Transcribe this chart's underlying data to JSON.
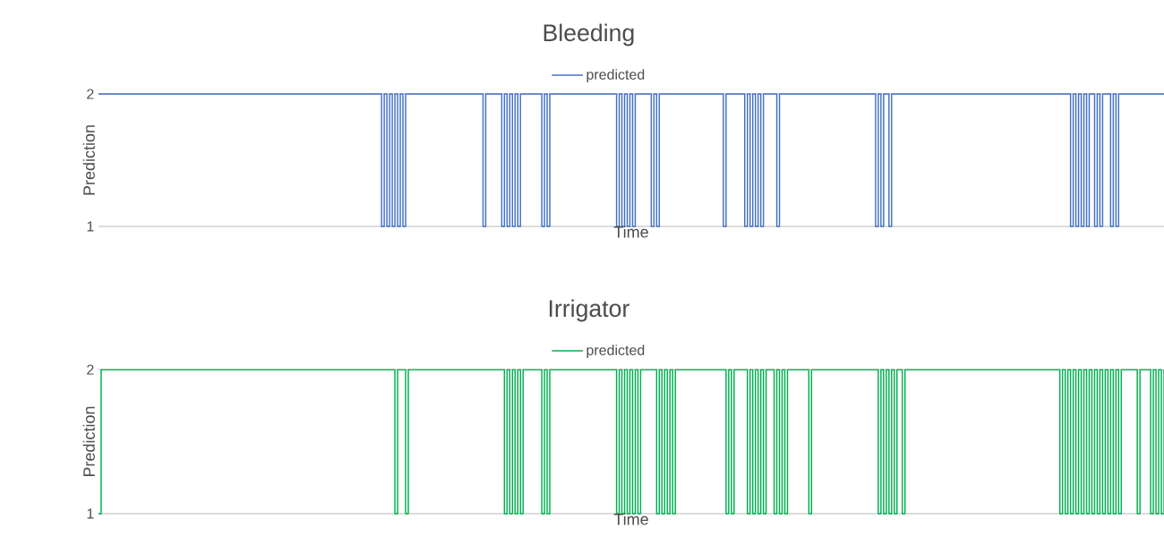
{
  "chart_data": [
    {
      "type": "step",
      "title": "Bleeding",
      "xlabel": "Time",
      "ylabel": "Prediction",
      "ylim": [
        1,
        2
      ],
      "yticks": [
        1,
        2
      ],
      "grid": "y",
      "legend": "top",
      "tick_labels": "y",
      "categories": [
        null,
        null,
        null,
        null,
        null,
        null,
        null,
        null,
        null,
        null,
        null,
        null,
        null,
        null,
        null,
        null,
        null,
        null,
        null,
        null,
        null,
        null,
        null,
        null,
        null,
        null,
        null,
        null,
        null,
        null,
        null,
        null,
        null,
        null,
        null,
        null,
        null,
        null,
        null,
        null,
        null,
        null,
        null,
        null,
        null,
        null,
        null,
        null,
        null,
        null,
        null,
        null,
        null,
        null,
        null,
        null,
        null,
        null,
        null,
        null,
        null,
        null,
        null,
        null,
        null,
        null,
        null,
        null,
        null,
        null,
        null,
        null,
        null,
        null,
        null,
        null,
        null,
        null,
        null,
        null,
        null,
        null,
        null,
        null,
        null,
        null,
        null,
        null,
        null,
        null,
        null,
        null,
        null,
        null,
        null,
        null,
        null,
        null,
        null,
        null,
        null,
        null,
        null,
        null,
        null,
        null,
        null,
        null,
        null,
        null,
        null,
        null,
        null,
        null,
        null,
        null,
        null,
        null,
        null,
        null,
        null,
        null,
        null,
        null,
        null,
        null,
        null,
        null,
        null,
        null,
        null,
        null,
        null,
        null,
        null,
        null,
        null,
        null,
        null,
        null,
        null,
        null,
        null,
        null,
        null,
        null,
        null,
        null,
        null,
        null,
        null,
        null,
        null,
        null,
        null,
        null,
        null,
        null,
        null,
        null,
        null,
        null,
        null,
        null,
        null,
        null,
        null,
        null,
        null,
        null,
        null,
        null,
        null,
        null,
        null,
        null,
        null,
        null,
        null,
        null,
        null,
        null,
        null,
        null,
        null,
        null,
        null,
        null,
        null,
        null,
        null,
        null,
        null,
        null,
        null,
        null,
        null,
        null,
        null,
        null,
        null,
        null,
        null,
        null,
        null,
        null,
        null,
        null,
        null,
        null,
        null,
        null,
        null,
        null,
        null,
        null,
        null,
        null,
        null,
        null,
        null,
        null,
        null,
        null,
        null,
        null,
        null,
        null,
        null,
        null,
        null,
        null,
        null,
        null,
        null,
        null,
        null,
        null,
        null,
        null,
        null,
        null,
        null,
        null,
        null,
        null,
        null,
        null,
        null,
        null,
        null,
        null,
        null,
        null,
        null,
        null,
        null,
        null,
        null,
        null,
        null,
        null,
        null,
        null,
        null,
        null,
        null,
        null,
        null,
        null,
        null,
        null,
        null,
        null,
        null,
        null,
        null,
        null,
        null,
        null,
        null,
        null,
        null,
        null,
        null,
        null,
        null,
        null,
        null,
        null,
        null,
        null,
        null,
        null,
        null,
        null,
        null,
        null,
        null,
        null,
        null,
        null,
        null,
        null,
        null,
        null,
        null,
        null,
        null,
        null,
        null,
        null,
        null,
        null,
        null,
        null,
        null,
        null,
        null,
        null,
        null,
        null,
        null,
        null,
        null,
        null,
        null,
        null,
        null,
        null,
        null,
        null,
        null,
        null,
        null,
        null,
        null,
        null,
        null,
        null,
        null,
        null,
        null,
        null,
        null,
        null,
        null,
        null,
        null,
        null,
        null,
        null,
        null,
        null,
        null,
        null,
        null,
        null,
        null,
        null,
        null,
        null,
        null,
        null,
        null,
        null,
        null,
        null,
        null,
        null,
        null,
        null,
        null,
        null,
        null,
        null,
        null,
        null,
        null,
        null,
        null,
        null,
        null,
        null,
        null,
        null,
        null,
        null,
        null,
        null,
        null,
        null,
        null,
        null,
        null,
        null,
        null,
        null,
        null,
        null
      ],
      "series": [
        {
          "name": "predicted",
          "color": "#4472c4",
          "values": [
            2,
            2,
            2,
            2,
            2,
            2,
            2,
            2,
            2,
            2,
            2,
            2,
            2,
            2,
            2,
            2,
            2,
            2,
            2,
            2,
            2,
            2,
            2,
            2,
            2,
            2,
            2,
            2,
            2,
            2,
            2,
            2,
            2,
            2,
            2,
            2,
            2,
            2,
            2,
            2,
            2,
            2,
            2,
            2,
            2,
            2,
            2,
            2,
            2,
            2,
            2,
            2,
            2,
            2,
            2,
            2,
            2,
            2,
            2,
            2,
            2,
            2,
            2,
            2,
            2,
            2,
            2,
            2,
            2,
            2,
            2,
            2,
            2,
            2,
            2,
            2,
            2,
            2,
            2,
            2,
            2,
            2,
            2,
            2,
            2,
            2,
            2,
            2,
            2,
            2,
            2,
            2,
            2,
            2,
            2,
            2,
            2,
            2,
            2,
            2,
            2,
            2,
            2,
            2,
            2,
            2,
            1,
            2,
            1,
            2,
            1,
            2,
            1,
            2,
            1,
            2,
            2,
            2,
            2,
            2,
            2,
            2,
            2,
            2,
            2,
            2,
            2,
            2,
            2,
            2,
            2,
            2,
            2,
            2,
            2,
            2,
            2,
            2,
            2,
            2,
            2,
            2,
            2,
            2,
            1,
            2,
            2,
            2,
            2,
            2,
            2,
            1,
            2,
            1,
            2,
            1,
            2,
            1,
            2,
            2,
            2,
            2,
            2,
            2,
            2,
            2,
            1,
            2,
            1,
            2,
            2,
            2,
            2,
            2,
            2,
            2,
            2,
            2,
            2,
            2,
            2,
            2,
            2,
            2,
            2,
            2,
            2,
            2,
            2,
            2,
            2,
            2,
            2,
            2,
            1,
            2,
            1,
            2,
            1,
            2,
            1,
            2,
            2,
            2,
            2,
            2,
            2,
            1,
            2,
            1,
            2,
            2,
            2,
            2,
            2,
            2,
            2,
            2,
            2,
            2,
            2,
            2,
            2,
            2,
            2,
            2,
            2,
            2,
            2,
            2,
            2,
            2,
            2,
            2,
            1,
            2,
            2,
            2,
            2,
            2,
            2,
            2,
            1,
            2,
            1,
            2,
            1,
            2,
            1,
            2,
            2,
            2,
            2,
            2,
            1,
            2,
            2,
            2,
            2,
            2,
            2,
            2,
            2,
            2,
            2,
            2,
            2,
            2,
            2,
            2,
            2,
            2,
            2,
            2,
            2,
            2,
            2,
            2,
            2,
            2,
            2,
            2,
            2,
            2,
            2,
            2,
            2,
            2,
            2,
            2,
            2,
            1,
            2,
            1,
            2,
            2,
            1,
            2,
            2,
            2,
            2,
            2,
            2,
            2,
            2,
            2,
            2,
            2,
            2,
            2,
            2,
            2,
            2,
            2,
            2,
            2,
            2,
            2,
            2,
            2,
            2,
            2,
            2,
            2,
            2,
            2,
            2,
            2,
            2,
            2,
            2,
            2,
            2,
            2,
            2,
            2,
            2,
            2,
            2,
            2,
            2,
            2,
            2,
            2,
            2,
            2,
            2,
            2,
            2,
            2,
            2,
            2,
            2,
            2,
            2,
            2,
            2,
            2,
            2,
            2,
            2,
            2,
            2,
            2,
            1,
            2,
            1,
            2,
            1,
            2,
            1,
            2,
            2,
            1,
            2,
            1,
            2,
            2,
            2,
            1,
            2,
            1,
            2,
            2,
            2,
            2,
            2,
            2,
            2,
            2,
            2,
            2,
            2,
            2,
            2,
            2,
            2,
            2,
            2,
            2
          ]
        }
      ]
    },
    {
      "type": "step",
      "title": "Irrigator",
      "xlabel": "Time",
      "ylabel": "Prediction",
      "ylim": [
        1,
        2
      ],
      "yticks": [
        1,
        2
      ],
      "grid": "y",
      "legend": "top",
      "tick_labels": "y",
      "categories": [
        null,
        null,
        null,
        null,
        null,
        null,
        null,
        null,
        null,
        null,
        null,
        null,
        null,
        null,
        null,
        null,
        null,
        null,
        null,
        null,
        null,
        null,
        null,
        null,
        null,
        null,
        null,
        null,
        null,
        null,
        null,
        null,
        null,
        null,
        null,
        null,
        null,
        null,
        null,
        null,
        null,
        null,
        null,
        null,
        null,
        null,
        null,
        null,
        null,
        null,
        null,
        null,
        null,
        null,
        null,
        null,
        null,
        null,
        null,
        null,
        null,
        null,
        null,
        null,
        null,
        null,
        null,
        null,
        null,
        null,
        null,
        null,
        null,
        null,
        null,
        null,
        null,
        null,
        null,
        null,
        null,
        null,
        null,
        null,
        null,
        null,
        null,
        null,
        null,
        null,
        null,
        null,
        null,
        null,
        null,
        null,
        null,
        null,
        null,
        null,
        null,
        null,
        null,
        null,
        null,
        null,
        null,
        null,
        null,
        null,
        null,
        null,
        null,
        null,
        null,
        null,
        null,
        null,
        null,
        null,
        null,
        null,
        null,
        null,
        null,
        null,
        null,
        null,
        null,
        null,
        null,
        null,
        null,
        null,
        null,
        null,
        null,
        null,
        null,
        null,
        null,
        null,
        null,
        null,
        null,
        null,
        null,
        null,
        null,
        null,
        null,
        null,
        null,
        null,
        null,
        null,
        null,
        null,
        null,
        null,
        null,
        null,
        null,
        null,
        null,
        null,
        null,
        null,
        null,
        null,
        null,
        null,
        null,
        null,
        null,
        null,
        null,
        null,
        null,
        null,
        null,
        null,
        null,
        null,
        null,
        null,
        null,
        null,
        null,
        null,
        null,
        null,
        null,
        null,
        null,
        null,
        null,
        null,
        null,
        null,
        null,
        null,
        null,
        null,
        null,
        null,
        null,
        null,
        null,
        null,
        null,
        null,
        null,
        null,
        null,
        null,
        null,
        null,
        null,
        null,
        null,
        null,
        null,
        null,
        null,
        null,
        null,
        null,
        null,
        null,
        null,
        null,
        null,
        null,
        null,
        null,
        null,
        null,
        null,
        null,
        null,
        null,
        null,
        null,
        null,
        null,
        null,
        null,
        null,
        null,
        null,
        null,
        null,
        null,
        null,
        null,
        null,
        null,
        null,
        null,
        null,
        null,
        null,
        null,
        null,
        null,
        null,
        null,
        null,
        null,
        null,
        null,
        null,
        null,
        null,
        null,
        null,
        null,
        null,
        null,
        null,
        null,
        null,
        null,
        null,
        null,
        null,
        null,
        null,
        null,
        null,
        null,
        null,
        null,
        null,
        null,
        null,
        null,
        null,
        null,
        null,
        null,
        null,
        null,
        null,
        null,
        null,
        null,
        null,
        null,
        null,
        null,
        null,
        null,
        null,
        null,
        null,
        null,
        null,
        null,
        null,
        null,
        null,
        null,
        null,
        null,
        null,
        null,
        null,
        null,
        null,
        null,
        null,
        null,
        null,
        null,
        null,
        null,
        null,
        null,
        null,
        null,
        null,
        null,
        null,
        null,
        null,
        null,
        null,
        null,
        null,
        null,
        null,
        null,
        null,
        null,
        null,
        null,
        null,
        null,
        null,
        null,
        null,
        null,
        null,
        null,
        null,
        null,
        null,
        null,
        null,
        null,
        null,
        null,
        null,
        null,
        null,
        null,
        null,
        null,
        null,
        null,
        null,
        null,
        null,
        null,
        null,
        null,
        null,
        null,
        null,
        null,
        null,
        null,
        null,
        null,
        null,
        null,
        null,
        null
      ],
      "series": [
        {
          "name": "predicted",
          "color": "#00b050",
          "values": [
            1,
            2,
            2,
            2,
            2,
            2,
            2,
            2,
            2,
            2,
            2,
            2,
            2,
            2,
            2,
            2,
            2,
            2,
            2,
            2,
            2,
            2,
            2,
            2,
            2,
            2,
            2,
            2,
            2,
            2,
            2,
            2,
            2,
            2,
            2,
            2,
            2,
            2,
            2,
            2,
            2,
            2,
            2,
            2,
            2,
            2,
            2,
            2,
            2,
            2,
            2,
            2,
            2,
            2,
            2,
            2,
            2,
            2,
            2,
            2,
            2,
            2,
            2,
            2,
            2,
            2,
            2,
            2,
            2,
            2,
            2,
            2,
            2,
            2,
            2,
            2,
            2,
            2,
            2,
            2,
            2,
            2,
            2,
            2,
            2,
            2,
            2,
            2,
            2,
            2,
            2,
            2,
            2,
            2,
            2,
            2,
            2,
            2,
            2,
            2,
            2,
            2,
            2,
            2,
            2,
            2,
            2,
            2,
            2,
            2,
            2,
            1,
            2,
            2,
            2,
            1,
            2,
            2,
            2,
            2,
            2,
            2,
            2,
            2,
            2,
            2,
            2,
            2,
            2,
            2,
            2,
            2,
            2,
            2,
            2,
            2,
            2,
            2,
            2,
            2,
            2,
            2,
            2,
            2,
            2,
            2,
            2,
            2,
            2,
            2,
            2,
            2,
            1,
            2,
            1,
            2,
            1,
            2,
            1,
            2,
            2,
            2,
            2,
            2,
            2,
            2,
            1,
            2,
            1,
            2,
            2,
            2,
            2,
            2,
            2,
            2,
            2,
            2,
            2,
            2,
            2,
            2,
            2,
            2,
            2,
            2,
            2,
            2,
            2,
            2,
            2,
            2,
            2,
            2,
            1,
            2,
            1,
            2,
            1,
            2,
            1,
            2,
            1,
            2,
            2,
            2,
            2,
            2,
            2,
            1,
            2,
            1,
            2,
            1,
            2,
            1,
            2,
            2,
            2,
            2,
            2,
            2,
            2,
            2,
            2,
            2,
            2,
            2,
            2,
            2,
            2,
            2,
            2,
            2,
            2,
            1,
            2,
            1,
            2,
            2,
            2,
            2,
            2,
            1,
            2,
            1,
            2,
            1,
            2,
            1,
            2,
            2,
            2,
            1,
            2,
            1,
            2,
            1,
            2,
            2,
            2,
            2,
            2,
            2,
            2,
            2,
            1,
            2,
            2,
            2,
            2,
            2,
            2,
            2,
            2,
            2,
            2,
            2,
            2,
            2,
            2,
            2,
            2,
            2,
            2,
            2,
            2,
            2,
            2,
            2,
            2,
            2,
            1,
            2,
            1,
            2,
            1,
            2,
            1,
            2,
            2,
            1,
            2,
            2,
            2,
            2,
            2,
            2,
            2,
            2,
            2,
            2,
            2,
            2,
            2,
            2,
            2,
            2,
            2,
            2,
            2,
            2,
            2,
            2,
            2,
            2,
            2,
            2,
            2,
            2,
            2,
            2,
            2,
            2,
            2,
            2,
            2,
            2,
            2,
            2,
            2,
            2,
            2,
            2,
            2,
            2,
            2,
            2,
            2,
            2,
            2,
            2,
            2,
            2,
            2,
            2,
            2,
            2,
            2,
            2,
            1,
            2,
            1,
            2,
            1,
            2,
            1,
            2,
            1,
            2,
            1,
            2,
            1,
            2,
            1,
            2,
            1,
            2,
            1,
            2,
            1,
            2,
            1,
            2,
            2,
            2,
            2,
            2,
            2,
            1,
            2,
            2,
            2,
            2,
            1,
            2,
            1,
            2,
            1,
            2
          ]
        }
      ]
    }
  ]
}
